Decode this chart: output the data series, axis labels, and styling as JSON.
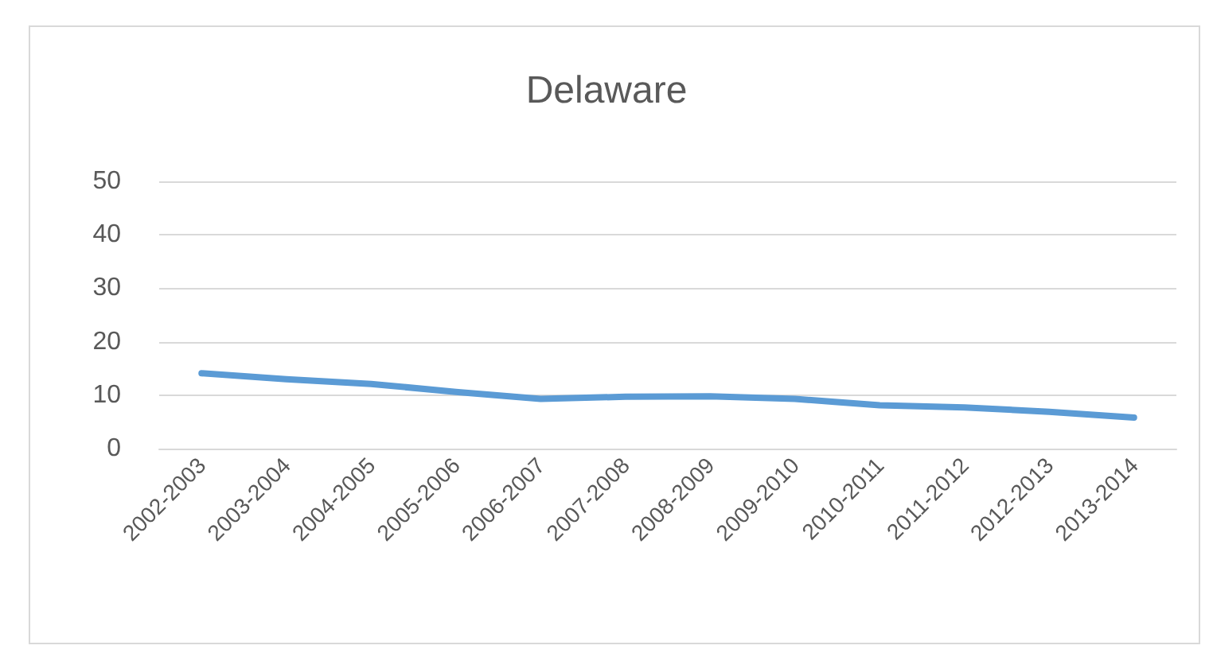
{
  "chart_data": {
    "type": "line",
    "title": "Delaware",
    "categories": [
      "2002-2003",
      "2003-2004",
      "2004-2005",
      "2005-2006",
      "2006-2007",
      "2007-2008",
      "2008-2009",
      "2009-2010",
      "2010-2011",
      "2011-2012",
      "2012-2013",
      "2013-2014"
    ],
    "series": [
      {
        "color": "#5b9bd5",
        "values": [
          14.1,
          13.0,
          12.1,
          10.6,
          9.3,
          9.7,
          9.8,
          9.3,
          8.1,
          7.7,
          6.9,
          5.8
        ]
      }
    ],
    "ylim": [
      0,
      50
    ],
    "yticks": [
      0,
      10,
      20,
      30,
      40,
      50
    ],
    "grid": "y",
    "marker": "none",
    "line_style": "solid"
  }
}
